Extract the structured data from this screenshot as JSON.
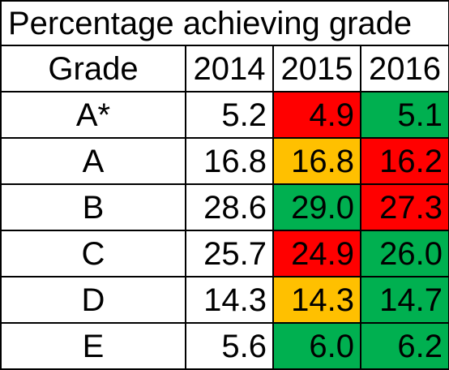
{
  "title": "Percentage achieving grade",
  "header": {
    "grade_label": "Grade",
    "years": [
      "2014",
      "2015",
      "2016"
    ]
  },
  "rows": [
    {
      "grade": "A*",
      "cells": [
        {
          "text": "5.2",
          "color": ""
        },
        {
          "text": "4.9",
          "color": "#ff0000"
        },
        {
          "text": "5.1",
          "color": "#00b050"
        }
      ]
    },
    {
      "grade": "A",
      "cells": [
        {
          "text": "16.8",
          "color": ""
        },
        {
          "text": "16.8",
          "color": "#ffc000"
        },
        {
          "text": "16.2",
          "color": "#ff0000"
        }
      ]
    },
    {
      "grade": "B",
      "cells": [
        {
          "text": "28.6",
          "color": ""
        },
        {
          "text": "29.0",
          "color": "#00b050"
        },
        {
          "text": "27.3",
          "color": "#ff0000"
        }
      ]
    },
    {
      "grade": "C",
      "cells": [
        {
          "text": "25.7",
          "color": ""
        },
        {
          "text": "24.9",
          "color": "#ff0000"
        },
        {
          "text": "26.0",
          "color": "#00b050"
        }
      ]
    },
    {
      "grade": "D",
      "cells": [
        {
          "text": "14.3",
          "color": ""
        },
        {
          "text": "14.3",
          "color": "#ffc000"
        },
        {
          "text": "14.7",
          "color": "#00b050"
        }
      ]
    },
    {
      "grade": "E",
      "cells": [
        {
          "text": "5.6",
          "color": ""
        },
        {
          "text": "6.0",
          "color": "#00b050"
        },
        {
          "text": "6.2",
          "color": "#00b050"
        }
      ]
    }
  ],
  "colors": {
    "decrease": "#ff0000",
    "no_change": "#ffc000",
    "increase": "#00b050"
  },
  "chart_data": {
    "type": "table",
    "title": "Percentage achieving grade",
    "columns": [
      "Grade",
      "2014",
      "2015",
      "2016"
    ],
    "categories": [
      "A*",
      "A",
      "B",
      "C",
      "D",
      "E"
    ],
    "series": [
      {
        "name": "2014",
        "values": [
          5.2,
          16.8,
          28.6,
          25.7,
          14.3,
          5.6
        ]
      },
      {
        "name": "2015",
        "values": [
          4.9,
          16.8,
          29.0,
          24.9,
          14.3,
          6.0
        ]
      },
      {
        "name": "2016",
        "values": [
          5.1,
          16.2,
          27.3,
          26.0,
          14.7,
          6.2
        ]
      }
    ]
  }
}
